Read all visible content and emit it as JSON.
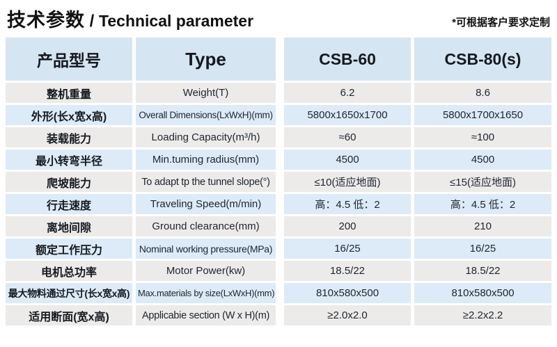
{
  "page": {
    "title_cn": "技术参数",
    "title_sep": " / ",
    "title_en": "Technical parameter",
    "note": "*可根据客户要求定制"
  },
  "table": {
    "header": {
      "param": "产品型号",
      "type": "Type",
      "model1": "CSB-60",
      "model2": "CSB-80(s)"
    },
    "rows": [
      {
        "param": "整机重量",
        "type": "Weight(T)",
        "csb60": "6.2",
        "csb80": "8.6"
      },
      {
        "param": "外形(长x宽x高)",
        "type": "Overall Dimensions(LxWxH)(mm)",
        "csb60": "5800x1650x1700",
        "csb80": "5800x1700x1650"
      },
      {
        "param": "装载能力",
        "type": "Loading Capacity(m³/h)",
        "csb60": "≈60",
        "csb80": "≈100"
      },
      {
        "param": "最小转弯半径",
        "type": "Min.tuming radius(mm)",
        "csb60": "4500",
        "csb80": "4500"
      },
      {
        "param": "爬坡能力",
        "type": "To adapt tp the tunnel slope(°)",
        "csb60": "≤10(适应地面)",
        "csb80": "≤15(适应地面)"
      },
      {
        "param": "行走速度",
        "type": "Traveling Speed(m/min)",
        "csb60": "高：4.5 低：2",
        "csb80": "高：4.5 低：2"
      },
      {
        "param": "离地间隙",
        "type": "Ground clearance(mm)",
        "csb60": "200",
        "csb80": "210"
      },
      {
        "param": "额定工作压力",
        "type": "Nominal working pressure(MPa)",
        "csb60": "16/25",
        "csb80": "16/25"
      },
      {
        "param": "电机总功率",
        "type": "Motor Power(kw)",
        "csb60": "18.5/22",
        "csb80": "18.5/22"
      },
      {
        "param": "最大物料通过尺寸(长x宽x高)",
        "type": "Max.materials by size(LxWxH)(mm)",
        "csb60": "810x580x500",
        "csb80": "810x580x500"
      },
      {
        "param": "适用断面(宽x高)",
        "type": "Applicabie section (W x H)(m)",
        "csb60": "≥2.0x2.0",
        "csb80": "≥2.2x2.2"
      }
    ],
    "colors": {
      "header_bg": "#d6e5f2",
      "row_gray": "#ecebe9",
      "row_blue": "#dcebf7",
      "text": "#1e2430"
    }
  }
}
